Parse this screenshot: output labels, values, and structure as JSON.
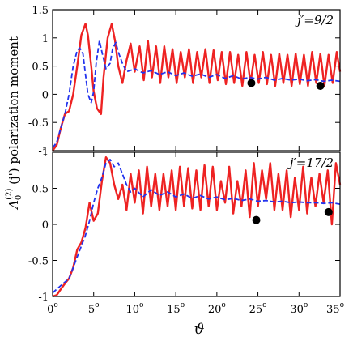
{
  "figure": {
    "ylabel_main": "A",
    "ylabel_sub": "0",
    "ylabel_sup": "(2)",
    "ylabel_rest": " (j') polarization moment",
    "xlabel": "ϑ",
    "degree_symbol": "o"
  },
  "colors": {
    "solid": "#ee2222",
    "dashed": "#2233ee",
    "dot": "#000000"
  },
  "chart_data": [
    {
      "type": "line",
      "panel_label": "j′=9/2",
      "xlim": [
        0,
        35
      ],
      "ylim": [
        -1,
        1.5
      ],
      "xticks": [
        0,
        5,
        10,
        15,
        20,
        25,
        30,
        35
      ],
      "yticks": [
        -1,
        -0.5,
        0,
        0.5,
        1,
        1.5
      ],
      "ytick_labels": [
        "-1",
        "-0.5",
        "0",
        "0.5",
        "1",
        "1.5"
      ],
      "grid": false,
      "series": [
        {
          "style": "solid",
          "color": "#ee2222",
          "x": [
            0,
            0.5,
            1,
            1.5,
            2,
            2.5,
            3,
            3.5,
            4,
            4.3,
            4.7,
            5,
            5.4,
            5.9,
            6.2,
            6.7,
            7.2,
            7.6,
            8,
            8.5,
            9,
            9.5,
            10,
            10.6,
            11.1,
            11.6,
            12.1,
            12.6,
            13.1,
            13.6,
            14.1,
            14.6,
            15.1,
            15.6,
            16.1,
            16.6,
            17.1,
            17.6,
            18.1,
            18.6,
            19.1,
            19.6,
            20.1,
            20.6,
            21.1,
            21.6,
            22.1,
            22.6,
            23.1,
            23.6,
            24.1,
            24.6,
            25.1,
            25.6,
            26.1,
            26.6,
            27.1,
            27.6,
            28.1,
            28.6,
            29.1,
            29.6,
            30.1,
            30.6,
            31.1,
            31.6,
            32.1,
            32.6,
            33.1,
            33.6,
            34.1,
            34.6,
            35
          ],
          "y": [
            -1,
            -0.9,
            -0.6,
            -0.35,
            -0.3,
            0,
            0.5,
            1.05,
            1.25,
            1.05,
            0.5,
            0.05,
            -0.25,
            -0.35,
            0.3,
            1.0,
            1.25,
            0.95,
            0.5,
            0.2,
            0.6,
            0.9,
            0.4,
            0.85,
            0.25,
            0.95,
            0.3,
            0.85,
            0.2,
            0.85,
            0.3,
            0.8,
            0.2,
            0.75,
            0.3,
            0.8,
            0.2,
            0.75,
            0.3,
            0.8,
            0.2,
            0.78,
            0.25,
            0.75,
            0.18,
            0.75,
            0.2,
            0.7,
            0.15,
            0.75,
            0.2,
            0.7,
            0.2,
            0.75,
            0.18,
            0.7,
            0.15,
            0.72,
            0.2,
            0.7,
            0.15,
            0.72,
            0.18,
            0.7,
            0.15,
            0.75,
            0.2,
            0.72,
            0.15,
            0.7,
            0.2,
            0.75,
            0.4
          ]
        },
        {
          "style": "dashed",
          "color": "#2233ee",
          "x": [
            0,
            0.5,
            1,
            1.5,
            2,
            2.5,
            3,
            3.3,
            3.7,
            4,
            4.3,
            4.7,
            5,
            5.3,
            5.7,
            6,
            6.5,
            7,
            7.3,
            7.7,
            8,
            8.5,
            9,
            10,
            11,
            12,
            13,
            14,
            15,
            16,
            17,
            18,
            19,
            20,
            21,
            22,
            23,
            24,
            25,
            26,
            27,
            28,
            29,
            30,
            31,
            32,
            33,
            34,
            35
          ],
          "y": [
            -0.95,
            -0.85,
            -0.6,
            -0.35,
            0,
            0.5,
            0.78,
            0.82,
            0.72,
            0.35,
            0.0,
            -0.15,
            0.05,
            0.55,
            0.95,
            0.75,
            0.45,
            0.55,
            0.8,
            0.92,
            0.75,
            0.55,
            0.4,
            0.45,
            0.38,
            0.42,
            0.35,
            0.4,
            0.33,
            0.38,
            0.32,
            0.36,
            0.3,
            0.35,
            0.28,
            0.33,
            0.27,
            0.3,
            0.27,
            0.3,
            0.25,
            0.28,
            0.25,
            0.27,
            0.24,
            0.26,
            0.23,
            0.25,
            0.23
          ]
        },
        {
          "style": "points",
          "color": "#000000",
          "x": [
            24.2,
            32.6
          ],
          "y": [
            0.2,
            0.15
          ]
        }
      ]
    },
    {
      "type": "line",
      "panel_label": "j′=17/2",
      "xlim": [
        0,
        35
      ],
      "ylim": [
        -1,
        1
      ],
      "xticks": [
        0,
        5,
        10,
        15,
        20,
        25,
        30,
        35
      ],
      "yticks": [
        -1,
        -0.5,
        0,
        0.5,
        1
      ],
      "ytick_labels": [
        "-1",
        "-0.5",
        "0",
        "0.5",
        "1"
      ],
      "grid": false,
      "series": [
        {
          "style": "solid",
          "color": "#ee2222",
          "x": [
            0,
            0.5,
            1,
            1.5,
            2,
            2.5,
            3,
            3.5,
            4,
            4.5,
            5,
            5.5,
            6,
            6.5,
            7,
            7.5,
            8,
            8.5,
            9,
            9.5,
            10,
            10.5,
            11,
            11.5,
            12,
            12.5,
            13,
            13.5,
            14,
            14.5,
            15,
            15.5,
            16,
            16.5,
            17,
            17.5,
            18,
            18.5,
            19,
            19.5,
            20,
            20.5,
            21,
            21.5,
            22,
            22.5,
            23,
            23.5,
            24,
            24.5,
            25,
            25.5,
            26,
            26.5,
            27,
            27.5,
            28,
            28.5,
            29,
            29.5,
            30,
            30.5,
            31,
            31.5,
            32,
            32.5,
            33,
            33.5,
            34,
            34.5,
            35
          ],
          "y": [
            -1,
            -0.98,
            -0.9,
            -0.82,
            -0.75,
            -0.6,
            -0.35,
            -0.25,
            -0.05,
            0.3,
            0.05,
            0.15,
            0.6,
            0.93,
            0.85,
            0.55,
            0.35,
            0.55,
            0.2,
            0.7,
            0.3,
            0.75,
            0.15,
            0.8,
            0.25,
            0.7,
            0.2,
            0.7,
            0.25,
            0.75,
            0.2,
            0.8,
            0.25,
            0.78,
            0.22,
            0.75,
            0.2,
            0.82,
            0.25,
            0.8,
            0.2,
            0.6,
            0.3,
            0.8,
            0.15,
            0.6,
            0.25,
            0.75,
            0.1,
            0.85,
            0.25,
            0.75,
            0.35,
            0.85,
            0.2,
            0.7,
            0.2,
            0.75,
            0.1,
            0.65,
            0.2,
            0.8,
            0.15,
            0.65,
            0.25,
            0.7,
            0.3,
            0.75,
            0.0,
            0.85,
            0.55
          ]
        },
        {
          "style": "dashed",
          "color": "#2233ee",
          "x": [
            0,
            1,
            2,
            2.5,
            3,
            3.5,
            4,
            4.5,
            5,
            5.5,
            6,
            6.5,
            7,
            7.5,
            8,
            8.5,
            9,
            9.5,
            10,
            11,
            12,
            13,
            14,
            15,
            16,
            17,
            18,
            19,
            20,
            21,
            22,
            23,
            24,
            25,
            26,
            27,
            28,
            29,
            30,
            31,
            32,
            33,
            34,
            35
          ],
          "y": [
            -0.95,
            -0.85,
            -0.75,
            -0.6,
            -0.45,
            -0.3,
            -0.15,
            0.05,
            0.3,
            0.5,
            0.65,
            0.85,
            0.9,
            0.8,
            0.85,
            0.7,
            0.55,
            0.45,
            0.5,
            0.38,
            0.48,
            0.4,
            0.45,
            0.38,
            0.42,
            0.36,
            0.4,
            0.35,
            0.38,
            0.34,
            0.36,
            0.33,
            0.35,
            0.32,
            0.33,
            0.31,
            0.32,
            0.3,
            0.31,
            0.3,
            0.3,
            0.29,
            0.3,
            0.28
          ]
        },
        {
          "style": "points",
          "color": "#000000",
          "x": [
            24.8,
            33.6
          ],
          "y": [
            0.06,
            0.17
          ]
        }
      ]
    }
  ]
}
